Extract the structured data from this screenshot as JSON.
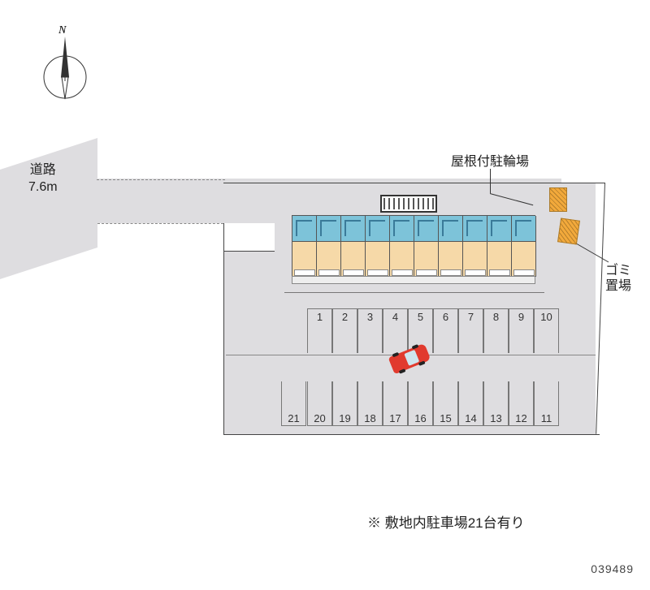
{
  "compass": {
    "label": "N"
  },
  "road": {
    "label_line1": "道路",
    "label_line2": "7.6m"
  },
  "labels": {
    "bike_parking": "屋根付駐輪場",
    "trash_line1": "ゴミ",
    "trash_line2": "置場"
  },
  "parking": {
    "row1": [
      "1",
      "2",
      "3",
      "4",
      "5",
      "6",
      "7",
      "8",
      "9",
      "10"
    ],
    "row2": [
      "11",
      "12",
      "13",
      "14",
      "15",
      "16",
      "17",
      "18",
      "19",
      "20"
    ],
    "extra": "21",
    "car_in_space": "17"
  },
  "building": {
    "unit_count": 10,
    "unit_top_color": "#7dc3d9",
    "unit_body_color": "#f6d9a8"
  },
  "note": "※ 敷地内駐車場21台有り",
  "doc_id": "039489",
  "colors": {
    "site_bg": "#dedde0",
    "accent_orange": "#f2a93b",
    "car": "#e13a2e",
    "line": "#444444"
  }
}
